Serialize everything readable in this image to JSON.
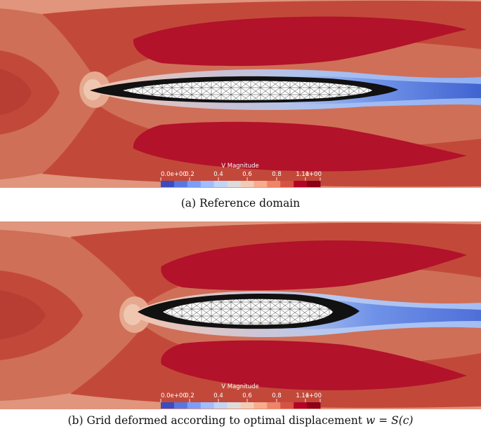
{
  "panels": [
    {
      "id": "a",
      "caption": "(a) Reference domain",
      "colorbar": {
        "title": "V Magnitude",
        "tick_labels": [
          "0.0e+00",
          "0.2",
          "0.4",
          "0.6",
          "0.8",
          "1",
          "1.1e+00"
        ]
      }
    },
    {
      "id": "b",
      "caption_prefix": "(b) Grid deformed according to optimal displacement ",
      "caption_math": "w = S(c)",
      "colorbar": {
        "title": "V Magnitude",
        "tick_labels": [
          "0.0e+00",
          "0.2",
          "0.4",
          "0.6",
          "0.8",
          "1",
          "1.1e+00"
        ]
      }
    }
  ],
  "colormap": {
    "name": "Cool to Warm",
    "range": [
      0.0,
      1.1
    ],
    "colors": [
      "#3b4cc0",
      "#5977e3",
      "#7b9ff9",
      "#9ebeff",
      "#c0d4f5",
      "#dddcdc",
      "#f2cbb7",
      "#f7ac8e",
      "#ee8468",
      "#d65244",
      "#b40426",
      "#8c0018"
    ]
  }
}
